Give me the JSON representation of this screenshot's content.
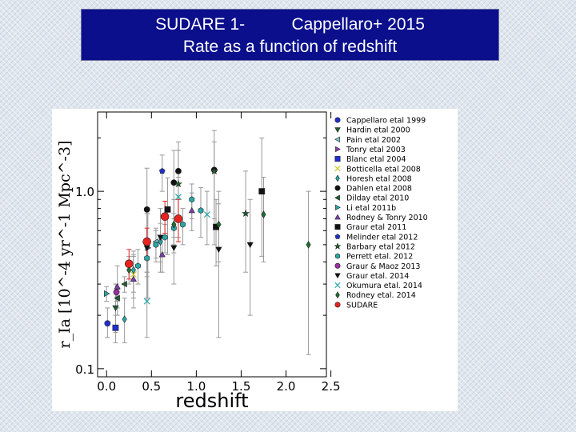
{
  "slide": {
    "title_line1": "SUDARE 1-          Cappellaro+ 2015",
    "title_line2": "Rate as a function of redshift"
  },
  "chart_data": {
    "type": "scatter",
    "xlabel": "redshift",
    "ylabel": "r_Ia [10^-4 yr^-1 Mpc^-3]",
    "xlim": [
      -0.1,
      2.45
    ],
    "ylim": [
      0.09,
      2.8
    ],
    "yscale": "log",
    "x_ticks": [
      "0.0",
      "0.5",
      "1.0",
      "1.5",
      "2.0",
      "2.5"
    ],
    "y_ticks": [
      "0.1",
      "1.0"
    ],
    "legend_position": "right",
    "series": [
      {
        "name": "Cappellaro etal 1999",
        "color": "#1f2fd0",
        "marker": "circle",
        "points": [
          {
            "x": 0.01,
            "y": 0.18,
            "lo": 0.15,
            "hi": 0.22
          }
        ]
      },
      {
        "name": "Hardin etal 2000",
        "color": "#1f5f2f",
        "marker": "triangle-down",
        "points": [
          {
            "x": 0.1,
            "y": 0.22,
            "lo": 0.16,
            "hi": 0.3
          }
        ]
      },
      {
        "name": "Pain etal 2002",
        "color": "#7ec3c8",
        "marker": "triangle-left",
        "points": [
          {
            "x": 0.55,
            "y": 0.52,
            "lo": 0.42,
            "hi": 0.62
          }
        ]
      },
      {
        "name": "Tonry etal 2003",
        "color": "#8b3fb0",
        "marker": "triangle-right",
        "points": [
          {
            "x": 0.46,
            "y": 0.48,
            "lo": 0.25,
            "hi": 0.75
          }
        ]
      },
      {
        "name": "Blanc etal 2004",
        "color": "#1f2fd0",
        "marker": "square",
        "points": [
          {
            "x": 0.1,
            "y": 0.17,
            "lo": 0.14,
            "hi": 0.2
          }
        ]
      },
      {
        "name": "Botticella etal 2008",
        "color": "#c8c830",
        "marker": "x",
        "points": [
          {
            "x": 0.3,
            "y": 0.34,
            "lo": 0.25,
            "hi": 0.43
          }
        ]
      },
      {
        "name": "Horesh etal 2008",
        "color": "#2aa7a7",
        "marker": "diamond",
        "points": [
          {
            "x": 0.2,
            "y": 0.19,
            "lo": 0.14,
            "hi": 0.25
          },
          {
            "x": 0.3,
            "y": 0.36,
            "lo": 0.27,
            "hi": 0.46
          },
          {
            "x": 0.6,
            "y": 0.52,
            "lo": 0.4,
            "hi": 0.66
          }
        ]
      },
      {
        "name": "Dahlen etal 2008",
        "color": "#111111",
        "marker": "circle",
        "points": [
          {
            "x": 0.45,
            "y": 0.79,
            "lo": 0.35,
            "hi": 1.35
          },
          {
            "x": 0.75,
            "y": 1.12,
            "lo": 0.55,
            "hi": 1.7
          },
          {
            "x": 0.8,
            "y": 1.3,
            "lo": 0.7,
            "hi": 1.9
          },
          {
            "x": 1.2,
            "y": 1.32,
            "lo": 0.5,
            "hi": 2.2
          }
        ]
      },
      {
        "name": "Dilday etal 2010",
        "color": "#1f5f2f",
        "marker": "triangle-left",
        "points": [
          {
            "x": 0.12,
            "y": 0.25,
            "lo": 0.22,
            "hi": 0.28
          },
          {
            "x": 0.2,
            "y": 0.3,
            "lo": 0.27,
            "hi": 0.33
          }
        ]
      },
      {
        "name": "Li etal 2011b",
        "color": "#2aa7a7",
        "marker": "triangle-right",
        "points": [
          {
            "x": 0.0,
            "y": 0.265,
            "lo": 0.24,
            "hi": 0.29
          }
        ]
      },
      {
        "name": "Rodney & Tonry 2010",
        "color": "#7a3fb0",
        "marker": "triangle-up",
        "points": [
          {
            "x": 0.12,
            "y": 0.29,
            "lo": 0.2,
            "hi": 0.38
          },
          {
            "x": 0.3,
            "y": 0.32,
            "lo": 0.22,
            "hi": 0.44
          },
          {
            "x": 0.62,
            "y": 0.44,
            "lo": 0.35,
            "hi": 0.55
          },
          {
            "x": 0.95,
            "y": 0.78,
            "lo": 0.6,
            "hi": 0.98
          }
        ]
      },
      {
        "name": "Graur etal 2011",
        "color": "#111111",
        "marker": "square",
        "points": [
          {
            "x": 0.68,
            "y": 0.79,
            "lo": 0.44,
            "hi": 1.19
          },
          {
            "x": 1.22,
            "y": 0.63,
            "lo": 0.38,
            "hi": 0.9
          },
          {
            "x": 1.73,
            "y": 1.0,
            "lo": 0.43,
            "hi": 2.0
          }
        ]
      },
      {
        "name": "Melinder etal 2012",
        "color": "#1f2fd0",
        "marker": "pentagon",
        "points": [
          {
            "x": 0.62,
            "y": 1.3,
            "lo": 1.0,
            "hi": 1.6
          }
        ]
      },
      {
        "name": "Barbary etal 2012",
        "color": "#1f5f2f",
        "marker": "star",
        "points": [
          {
            "x": 0.8,
            "y": 1.1,
            "lo": 0.55,
            "hi": 1.7
          },
          {
            "x": 1.2,
            "y": 1.3,
            "lo": 0.7,
            "hi": 1.9
          },
          {
            "x": 1.55,
            "y": 0.75,
            "lo": 0.35,
            "hi": 1.3
          }
        ]
      },
      {
        "name": "Perrett etal. 2012",
        "color": "#2aa7a7",
        "marker": "hexagon",
        "points": [
          {
            "x": 0.35,
            "y": 0.38,
            "lo": 0.3,
            "hi": 0.47
          },
          {
            "x": 0.45,
            "y": 0.42,
            "lo": 0.33,
            "hi": 0.52
          },
          {
            "x": 0.55,
            "y": 0.5,
            "lo": 0.4,
            "hi": 0.6
          },
          {
            "x": 0.65,
            "y": 0.55,
            "lo": 0.45,
            "hi": 0.65
          },
          {
            "x": 0.75,
            "y": 0.62,
            "lo": 0.5,
            "hi": 0.75
          },
          {
            "x": 0.85,
            "y": 0.65,
            "lo": 0.5,
            "hi": 0.8
          },
          {
            "x": 0.95,
            "y": 0.9,
            "lo": 0.7,
            "hi": 1.1
          },
          {
            "x": 1.05,
            "y": 0.78,
            "lo": 0.55,
            "hi": 1.05
          }
        ]
      },
      {
        "name": "Graur & Maoz 2013",
        "color": "#9b2fa0",
        "marker": "circle",
        "points": [
          {
            "x": 0.11,
            "y": 0.27,
            "lo": 0.24,
            "hi": 0.3
          }
        ]
      },
      {
        "name": "Graur etal. 2014",
        "color": "#111111",
        "marker": "triangle-down",
        "points": [
          {
            "x": 0.45,
            "y": 0.48,
            "lo": 0.25,
            "hi": 0.75
          },
          {
            "x": 0.6,
            "y": 0.55,
            "lo": 0.35,
            "hi": 0.8
          },
          {
            "x": 0.75,
            "y": 0.48,
            "lo": 0.3,
            "hi": 0.7
          },
          {
            "x": 1.25,
            "y": 0.47,
            "lo": 0.15,
            "hi": 0.85
          },
          {
            "x": 1.6,
            "y": 0.5,
            "lo": 0.2,
            "hi": 0.9
          }
        ]
      },
      {
        "name": "Okumura etal. 2014",
        "color": "#2aa7a7",
        "marker": "x",
        "points": [
          {
            "x": 0.45,
            "y": 0.24,
            "lo": 0.15,
            "hi": 0.35
          },
          {
            "x": 0.8,
            "y": 0.93,
            "lo": 0.7,
            "hi": 1.2
          },
          {
            "x": 1.12,
            "y": 0.74,
            "lo": 0.5,
            "hi": 1.0
          }
        ]
      },
      {
        "name": "Rodney etal. 2014",
        "color": "#1f6f2f",
        "marker": "diamond",
        "points": [
          {
            "x": 0.25,
            "y": 0.36,
            "lo": 0.3,
            "hi": 0.43
          },
          {
            "x": 0.75,
            "y": 0.65,
            "lo": 0.45,
            "hi": 0.9
          },
          {
            "x": 1.25,
            "y": 0.65,
            "lo": 0.4,
            "hi": 1.0
          },
          {
            "x": 1.75,
            "y": 0.74,
            "lo": 0.4,
            "hi": 1.2
          },
          {
            "x": 2.25,
            "y": 0.5,
            "lo": 0.12,
            "hi": 1.0
          }
        ]
      },
      {
        "name": "SUDARE",
        "color": "#e8221f",
        "marker": "circle",
        "points": [
          {
            "x": 0.25,
            "y": 0.39,
            "lo": 0.32,
            "hi": 0.47
          },
          {
            "x": 0.45,
            "y": 0.52,
            "lo": 0.41,
            "hi": 0.62
          },
          {
            "x": 0.65,
            "y": 0.72,
            "lo": 0.58,
            "hi": 0.88
          },
          {
            "x": 0.8,
            "y": 0.7,
            "lo": 0.52,
            "hi": 0.9
          }
        ]
      }
    ]
  }
}
